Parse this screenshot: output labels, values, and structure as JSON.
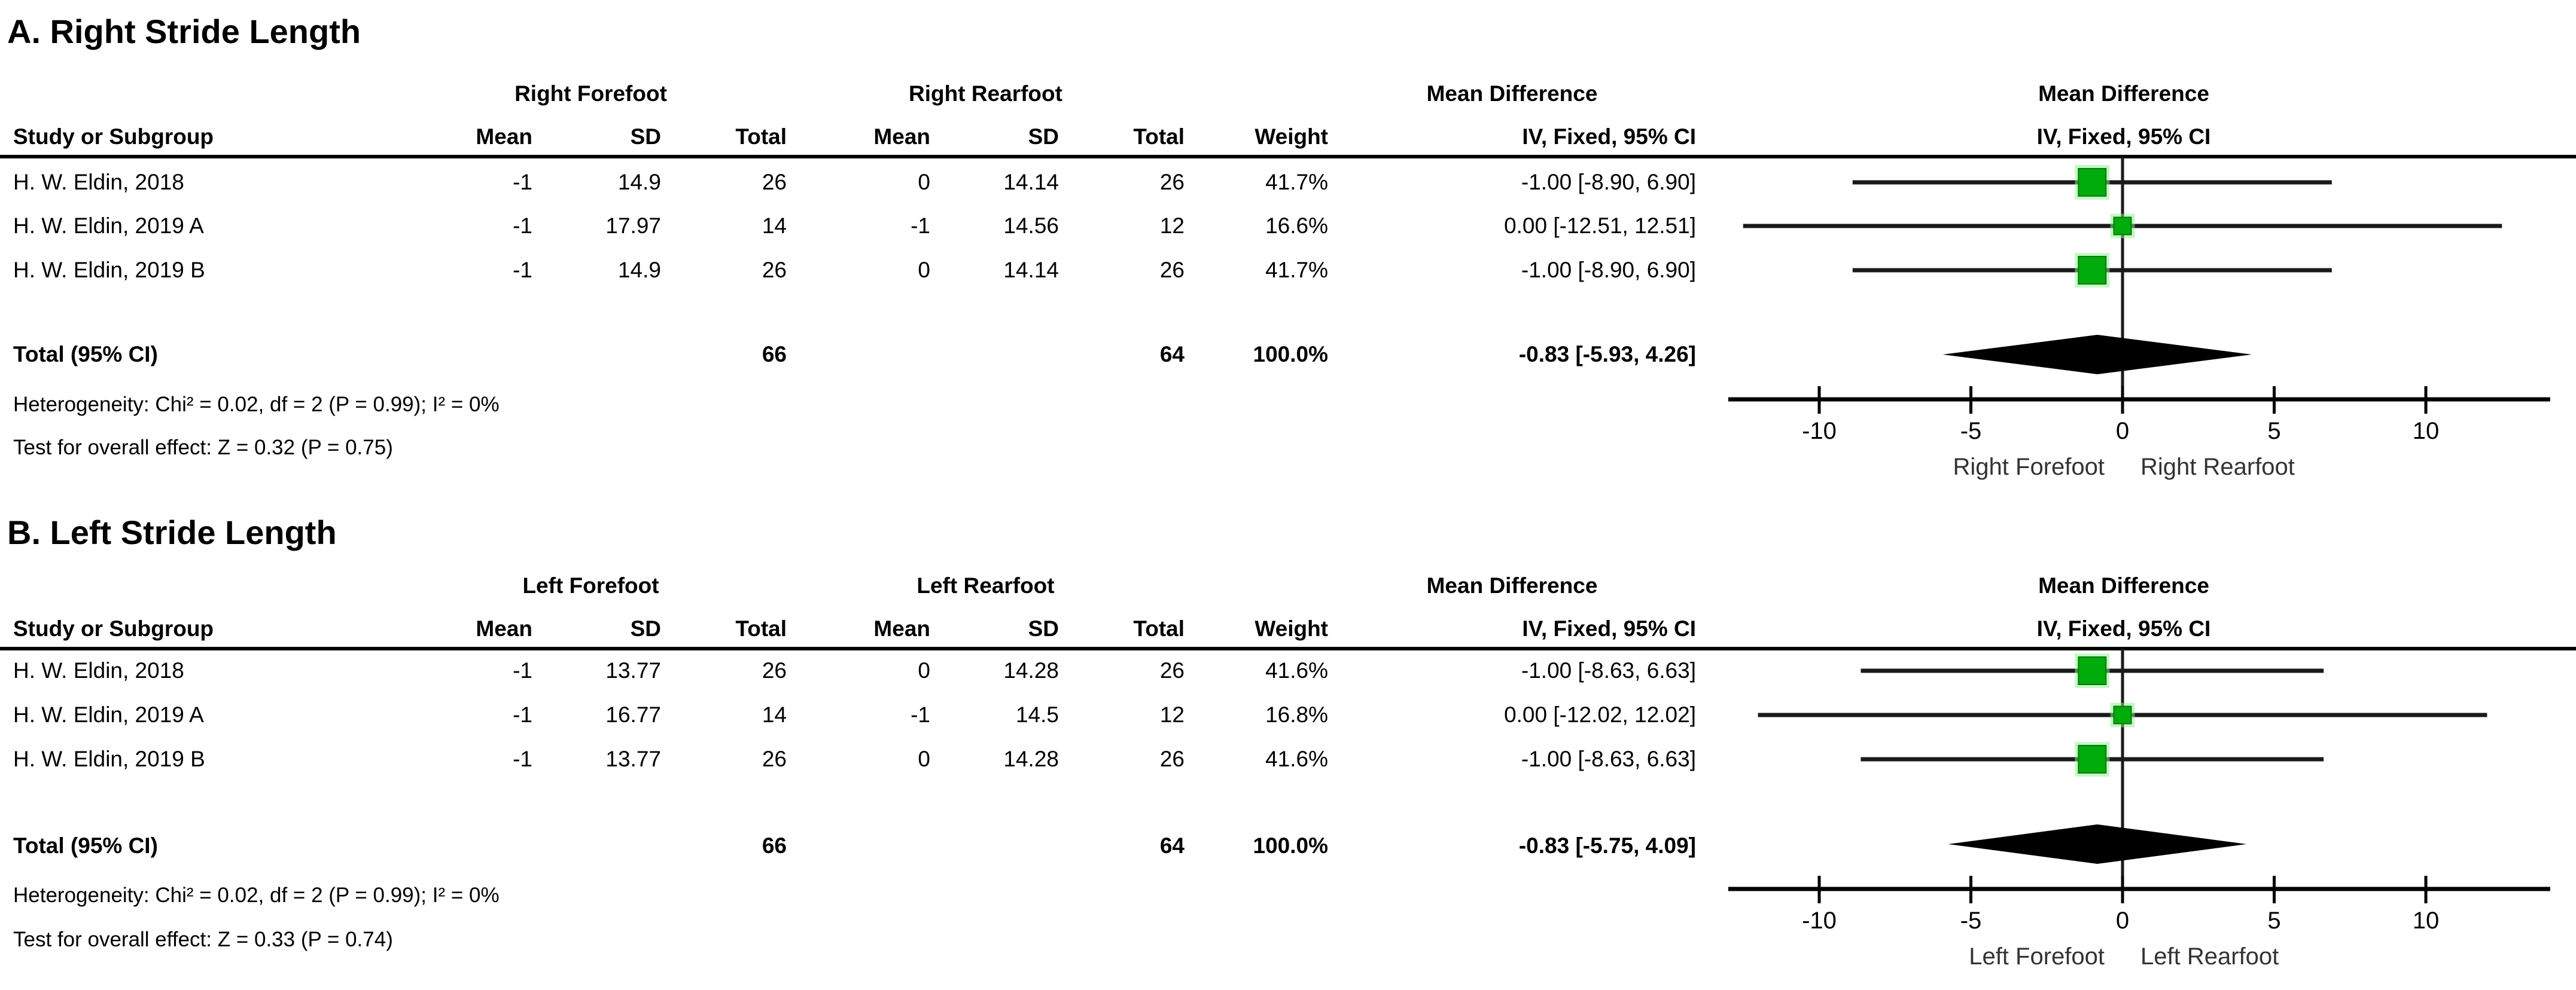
{
  "columns": {
    "study": "Study or Subgroup",
    "mean": "Mean",
    "sd": "SD",
    "total": "Total",
    "weight": "Weight",
    "md_header": "Mean Difference",
    "md_sub": "IV, Fixed, 95% CI"
  },
  "colors": {
    "marker_fill": "#00AB0C",
    "marker_border": "#0A7A0A",
    "marker_glow": "#8DF08D",
    "diamond": "#000000",
    "line": "#1A1A1A",
    "favours_text": "#333333"
  },
  "panels": [
    {
      "title": "A. Right Stride Length",
      "group1_label": "Right Forefoot",
      "group2_label": "Right Rearfoot",
      "rows": [
        {
          "study": "H. W. Eldin, 2018",
          "mean1": "-1",
          "sd1": "14.9",
          "total1": "26",
          "mean2": "0",
          "sd2": "14.14",
          "total2": "26",
          "weight": "41.7%",
          "mdci": "-1.00 [-8.90, 6.90]"
        },
        {
          "study": "H. W. Eldin, 2019 A",
          "mean1": "-1",
          "sd1": "17.97",
          "total1": "14",
          "mean2": "-1",
          "sd2": "14.56",
          "total2": "12",
          "weight": "16.6%",
          "mdci": "0.00 [-12.51, 12.51]"
        },
        {
          "study": "H. W. Eldin, 2019 B",
          "mean1": "-1",
          "sd1": "14.9",
          "total1": "26",
          "mean2": "0",
          "sd2": "14.14",
          "total2": "26",
          "weight": "41.7%",
          "mdci": "-1.00 [-8.90, 6.90]"
        }
      ],
      "total": {
        "label": "Total (95% CI)",
        "total1": "66",
        "total2": "64",
        "weight": "100.0%",
        "mdci": "-0.83 [-5.93, 4.26]"
      },
      "heterogeneity": "Heterogeneity: Chi² = 0.02, df = 2 (P = 0.99); I² = 0%",
      "overall_effect": "Test for overall effect: Z = 0.32 (P = 0.75)"
    },
    {
      "title": "B. Left Stride Length",
      "group1_label": "Left Forefoot",
      "group2_label": "Left Rearfoot",
      "rows": [
        {
          "study": "H. W. Eldin, 2018",
          "mean1": "-1",
          "sd1": "13.77",
          "total1": "26",
          "mean2": "0",
          "sd2": "14.28",
          "total2": "26",
          "weight": "41.6%",
          "mdci": "-1.00 [-8.63, 6.63]"
        },
        {
          "study": "H. W. Eldin, 2019 A",
          "mean1": "-1",
          "sd1": "16.77",
          "total1": "14",
          "mean2": "-1",
          "sd2": "14.5",
          "total2": "12",
          "weight": "16.8%",
          "mdci": "0.00 [-12.02, 12.02]"
        },
        {
          "study": "H. W. Eldin, 2019 B",
          "mean1": "-1",
          "sd1": "13.77",
          "total1": "26",
          "mean2": "0",
          "sd2": "14.28",
          "total2": "26",
          "weight": "41.6%",
          "mdci": "-1.00 [-8.63, 6.63]"
        }
      ],
      "total": {
        "label": "Total (95% CI)",
        "total1": "66",
        "total2": "64",
        "weight": "100.0%",
        "mdci": "-0.83 [-5.75, 4.09]"
      },
      "heterogeneity": "Heterogeneity: Chi² = 0.02, df = 2 (P = 0.99); I² = 0%",
      "overall_effect": "Test for overall effect: Z = 0.33 (P = 0.74)"
    }
  ],
  "chart_data": [
    {
      "type": "forest",
      "panel": "A",
      "title": "A. Right Stride Length",
      "effect_label": "Mean Difference",
      "method_label": "IV, Fixed, 95% CI",
      "x_ticks": [
        -10,
        -5,
        0,
        5,
        10
      ],
      "x_axis_drawn_range": [
        -13,
        14.1
      ],
      "studies": [
        {
          "name": "H. W. Eldin, 2018",
          "md": -1.0,
          "ci_low": -8.9,
          "ci_high": 6.9,
          "weight_pct": 41.7
        },
        {
          "name": "H. W. Eldin, 2019 A",
          "md": 0.0,
          "ci_low": -12.51,
          "ci_high": 12.51,
          "weight_pct": 16.6
        },
        {
          "name": "H. W. Eldin, 2019 B",
          "md": -1.0,
          "ci_low": -8.9,
          "ci_high": 6.9,
          "weight_pct": 41.7
        }
      ],
      "total": {
        "md": -0.83,
        "ci_low": -5.93,
        "ci_high": 4.26,
        "weight_pct": 100.0
      },
      "favours_left": "Right Forefoot",
      "favours_right": "Right Rearfoot"
    },
    {
      "type": "forest",
      "panel": "B",
      "title": "B. Left Stride Length",
      "effect_label": "Mean Difference",
      "method_label": "IV, Fixed, 95% CI",
      "x_ticks": [
        -10,
        -5,
        0,
        5,
        10
      ],
      "x_axis_drawn_range": [
        -13,
        14.1
      ],
      "studies": [
        {
          "name": "H. W. Eldin, 2018",
          "md": -1.0,
          "ci_low": -8.63,
          "ci_high": 6.63,
          "weight_pct": 41.6
        },
        {
          "name": "H. W. Eldin, 2019 A",
          "md": 0.0,
          "ci_low": -12.02,
          "ci_high": 12.02,
          "weight_pct": 16.8
        },
        {
          "name": "H. W. Eldin, 2019 B",
          "md": -1.0,
          "ci_low": -8.63,
          "ci_high": 6.63,
          "weight_pct": 41.6
        }
      ],
      "total": {
        "md": -0.83,
        "ci_low": -5.75,
        "ci_high": 4.09,
        "weight_pct": 100.0
      },
      "favours_left": "Left Forefoot",
      "favours_right": "Left Rearfoot"
    }
  ]
}
